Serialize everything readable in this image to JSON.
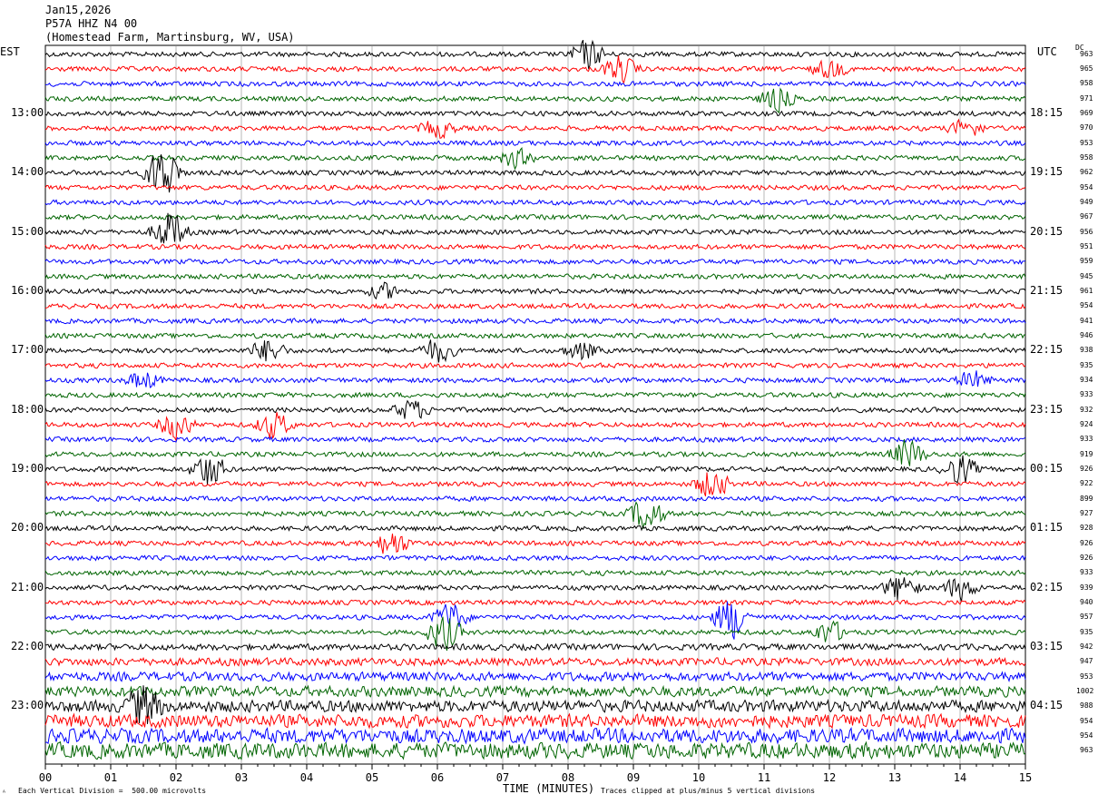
{
  "header": {
    "date": "Jan15,2026",
    "station": "P57A HHZ N4 00",
    "location": "(Homestead Farm, Martinsburg, WV, USA)"
  },
  "left_tz": "EST",
  "right_tz": "UTC",
  "dc_label": "DC",
  "left_hours": [
    "13:00",
    "14:00",
    "15:00",
    "16:00",
    "17:00",
    "18:00",
    "19:00",
    "20:00",
    "21:00",
    "22:00",
    "23:00"
  ],
  "right_hours": [
    "18:15",
    "19:15",
    "20:15",
    "21:15",
    "22:15",
    "23:15",
    "00:15",
    "01:15",
    "02:15",
    "03:15",
    "04:15"
  ],
  "dc_values": [
    "963",
    "965",
    "958",
    "971",
    "969",
    "970",
    "953",
    "958",
    "962",
    "954",
    "949",
    "967",
    "956",
    "951",
    "959",
    "945",
    "961",
    "954",
    "941",
    "946",
    "938",
    "935",
    "934",
    "933",
    "932",
    "924",
    "933",
    "919",
    "926",
    "922",
    "899",
    "927",
    "928",
    "926",
    "926",
    "933",
    "939",
    "940",
    "957",
    "935",
    "942",
    "947",
    "953",
    "1002",
    "988",
    "954",
    "954",
    "963"
  ],
  "footer": {
    "vertical_division": "Each Vertical Division =  500.00 microvolts",
    "xaxis_title": "TIME (MINUTES)",
    "clip_note": "Traces clipped at plus/minus 5 vertical divisions"
  },
  "chart_data": {
    "type": "line",
    "title": "P57A HHZ N4 00",
    "xlabel": "TIME (MINUTES)",
    "xlim": [
      0,
      15
    ],
    "x_ticks": [
      "00",
      "01",
      "02",
      "03",
      "04",
      "05",
      "06",
      "07",
      "08",
      "09",
      "10",
      "11",
      "12",
      "13",
      "14",
      "15"
    ],
    "trace_colors": [
      "#000000",
      "#ff0000",
      "#0000ff",
      "#006400"
    ],
    "trace_count": 48,
    "minutes_per_trace": 15,
    "grid_vertical": true,
    "units": "microvolts",
    "vertical_division_microvolts": 500,
    "clip_divisions": 5,
    "events": [
      {
        "trace": 0,
        "minute": 8.3,
        "amp": 1.0
      },
      {
        "trace": 1,
        "minute": 8.8,
        "amp": 0.9
      },
      {
        "trace": 1,
        "minute": 12.0,
        "amp": 0.6
      },
      {
        "trace": 3,
        "minute": 11.2,
        "amp": 0.8
      },
      {
        "trace": 5,
        "minute": 6.0,
        "amp": 0.6
      },
      {
        "trace": 5,
        "minute": 14.1,
        "amp": 0.6
      },
      {
        "trace": 7,
        "minute": 7.2,
        "amp": 0.6
      },
      {
        "trace": 8,
        "minute": 1.8,
        "amp": 2.0
      },
      {
        "trace": 12,
        "minute": 1.9,
        "amp": 1.4
      },
      {
        "trace": 16,
        "minute": 5.2,
        "amp": 0.5
      },
      {
        "trace": 20,
        "minute": 3.4,
        "amp": 0.8
      },
      {
        "trace": 20,
        "minute": 6.0,
        "amp": 0.8
      },
      {
        "trace": 20,
        "minute": 8.2,
        "amp": 0.6
      },
      {
        "trace": 22,
        "minute": 1.5,
        "amp": 0.6
      },
      {
        "trace": 22,
        "minute": 14.2,
        "amp": 0.6
      },
      {
        "trace": 24,
        "minute": 5.6,
        "amp": 0.7
      },
      {
        "trace": 25,
        "minute": 2.0,
        "amp": 0.9
      },
      {
        "trace": 25,
        "minute": 3.5,
        "amp": 0.9
      },
      {
        "trace": 27,
        "minute": 13.2,
        "amp": 1.0
      },
      {
        "trace": 28,
        "minute": 2.5,
        "amp": 1.2
      },
      {
        "trace": 28,
        "minute": 14.0,
        "amp": 1.0
      },
      {
        "trace": 29,
        "minute": 10.2,
        "amp": 1.0
      },
      {
        "trace": 31,
        "minute": 9.2,
        "amp": 1.2
      },
      {
        "trace": 33,
        "minute": 5.3,
        "amp": 0.9
      },
      {
        "trace": 36,
        "minute": 13.1,
        "amp": 1.0
      },
      {
        "trace": 36,
        "minute": 14.0,
        "amp": 0.8
      },
      {
        "trace": 38,
        "minute": 6.2,
        "amp": 1.0
      },
      {
        "trace": 38,
        "minute": 10.5,
        "amp": 1.5
      },
      {
        "trace": 39,
        "minute": 6.1,
        "amp": 1.2
      },
      {
        "trace": 39,
        "minute": 12.0,
        "amp": 0.8
      },
      {
        "trace": 44,
        "minute": 1.5,
        "amp": 1.4
      }
    ]
  }
}
